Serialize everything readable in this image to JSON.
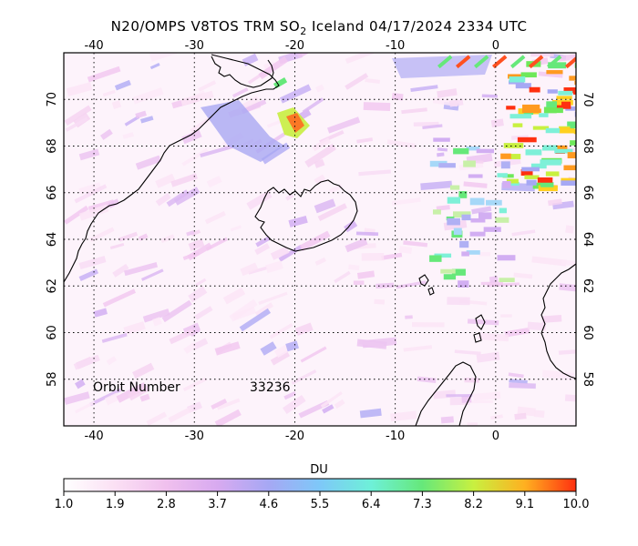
{
  "title": {
    "prefix": "N20/OMPS V8TOS TRM SO",
    "subscript": "2",
    "suffix": " Iceland 04/17/2024 2334 UTC"
  },
  "map": {
    "lon_ticks": [
      "-40",
      "-30",
      "-20",
      "-10",
      "0"
    ],
    "lon_values": [
      -40,
      -30,
      -20,
      -10,
      0
    ],
    "lat_ticks": [
      "70",
      "68",
      "66",
      "64",
      "62",
      "60",
      "58"
    ],
    "lat_values": [
      70,
      68,
      66,
      64,
      62,
      60,
      58
    ],
    "lon_range": [
      -43,
      8
    ],
    "lat_range": [
      56,
      72
    ],
    "gridlines": true
  },
  "orbit": {
    "label": "Orbit Number",
    "value": "33236"
  },
  "colorbar": {
    "unit": "DU",
    "ticks": [
      "1.0",
      "1.9",
      "2.8",
      "3.7",
      "4.6",
      "5.5",
      "6.4",
      "7.3",
      "8.2",
      "9.1",
      "10.0"
    ],
    "colors": [
      "#ffffff",
      "#fbe0f4",
      "#f0c0ee",
      "#d8aaf0",
      "#a6a8f4",
      "#7ec8f8",
      "#6ef0d8",
      "#66e87a",
      "#c8f040",
      "#ffb020",
      "#ff3010"
    ]
  }
}
